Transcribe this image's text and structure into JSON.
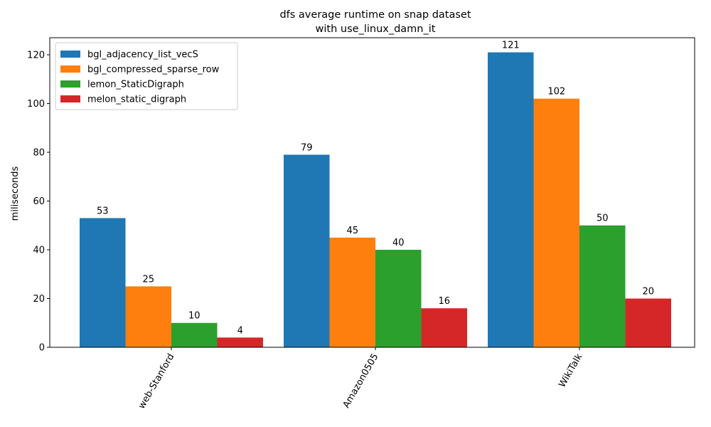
{
  "chart_data": {
    "type": "bar",
    "title_lines": [
      "dfs average runtime on snap dataset",
      "with use_linux_damn_it"
    ],
    "xlabel": "",
    "ylabel": "miliseconds",
    "categories": [
      "web-Stanford",
      "Amazon0505",
      "WikiTalk"
    ],
    "ylim": [
      0,
      127
    ],
    "yticks": [
      0,
      20,
      40,
      60,
      80,
      100,
      120
    ],
    "grid": false,
    "legend_position": "top-left",
    "series": [
      {
        "name": "bgl_adjacency_list_vecS",
        "color": "#1f77b4",
        "values": [
          53,
          79,
          121
        ]
      },
      {
        "name": "bgl_compressed_sparse_row",
        "color": "#ff7f0e",
        "values": [
          25,
          45,
          102
        ]
      },
      {
        "name": "lemon_StaticDigraph",
        "color": "#2ca02c",
        "values": [
          10,
          40,
          50
        ]
      },
      {
        "name": "melon_static_digraph",
        "color": "#d62728",
        "values": [
          4,
          16,
          20
        ]
      }
    ]
  }
}
